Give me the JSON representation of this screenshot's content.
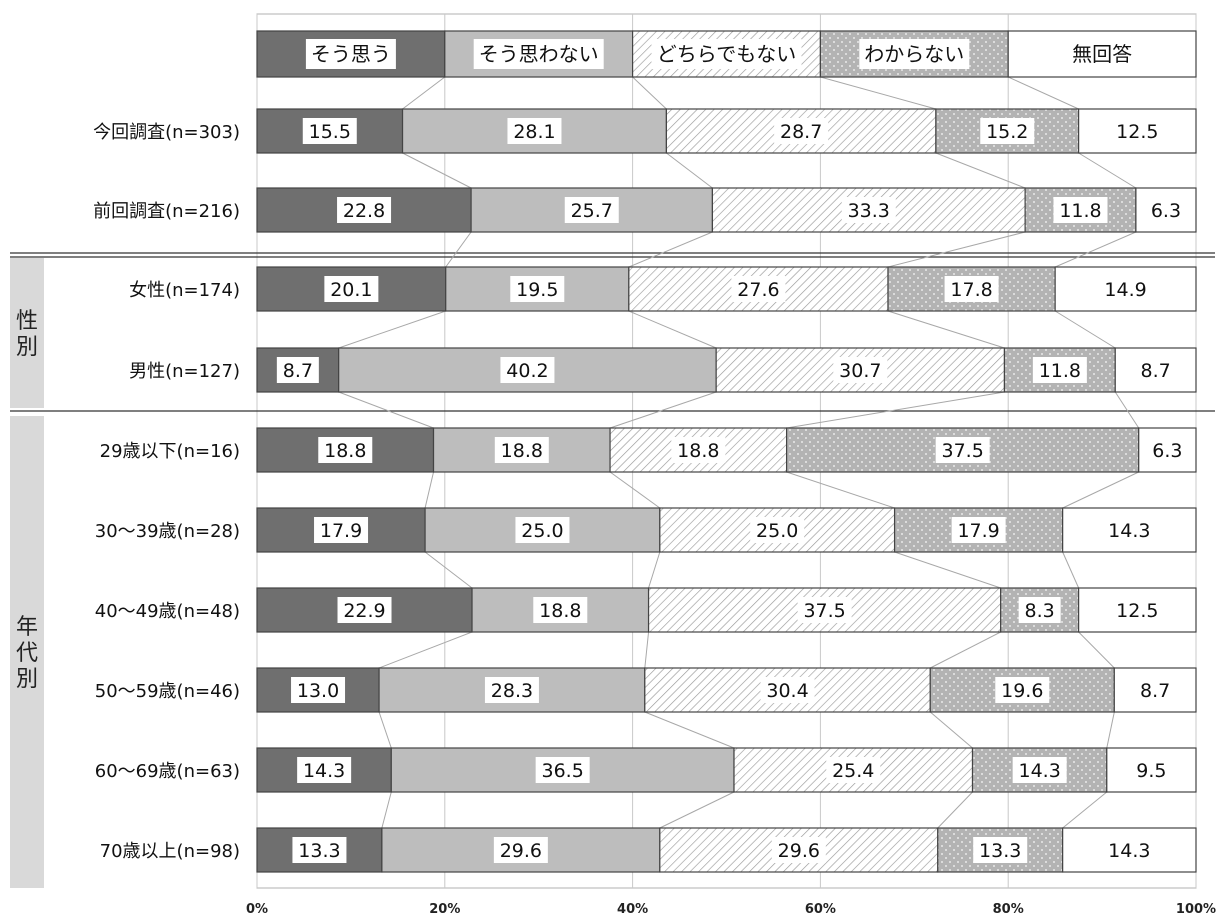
{
  "chart_data": {
    "type": "bar",
    "stacked": true,
    "orientation": "horizontal",
    "xlim": [
      0,
      100
    ],
    "x_ticks": [
      "0%",
      "20%",
      "40%",
      "60%",
      "80%",
      "100%"
    ],
    "grid": true,
    "legend_position": "top",
    "series": [
      {
        "name": "そう思う",
        "color": "#6f6f6f",
        "pattern": "solid-dark"
      },
      {
        "name": "そう思わない",
        "color": "#bdbdbd",
        "pattern": "solid-light"
      },
      {
        "name": "どちらでもない",
        "color": "#ffffff",
        "pattern": "diagonal-hatch"
      },
      {
        "name": "わからない",
        "color": "#b0b0b0",
        "pattern": "dots"
      },
      {
        "name": "無回答",
        "color": "#ffffff",
        "pattern": "none"
      }
    ],
    "categories": [
      "今回調査(n=303)",
      "前回調査(n=216)",
      "女性(n=174)",
      "男性(n=127)",
      "29歳以下(n=16)",
      "30～39歳(n=28)",
      "40～49歳(n=48)",
      "50～59歳(n=46)",
      "60～69歳(n=63)",
      "70歳以上(n=98)"
    ],
    "values": [
      [
        "15.5",
        "28.1",
        "28.7",
        "15.2",
        "12.5"
      ],
      [
        "22.8",
        "25.7",
        "33.3",
        "11.8",
        "6.3"
      ],
      [
        "20.1",
        "19.5",
        "27.6",
        "17.8",
        "14.9"
      ],
      [
        "8.7",
        "40.2",
        "30.7",
        "11.8",
        "8.7"
      ],
      [
        "18.8",
        "18.8",
        "18.8",
        "37.5",
        "6.3"
      ],
      [
        "17.9",
        "25.0",
        "25.0",
        "17.9",
        "14.3"
      ],
      [
        "22.9",
        "18.8",
        "37.5",
        "8.3",
        "12.5"
      ],
      [
        "13.0",
        "28.3",
        "30.4",
        "19.6",
        "8.7"
      ],
      [
        "14.3",
        "36.5",
        "25.4",
        "14.3",
        "9.5"
      ],
      [
        "13.3",
        "29.6",
        "29.6",
        "13.3",
        "14.3"
      ]
    ],
    "groups": [
      {
        "label": "性別",
        "rows": [
          2,
          3
        ]
      },
      {
        "label": "年代別",
        "rows": [
          4,
          9
        ]
      }
    ]
  }
}
